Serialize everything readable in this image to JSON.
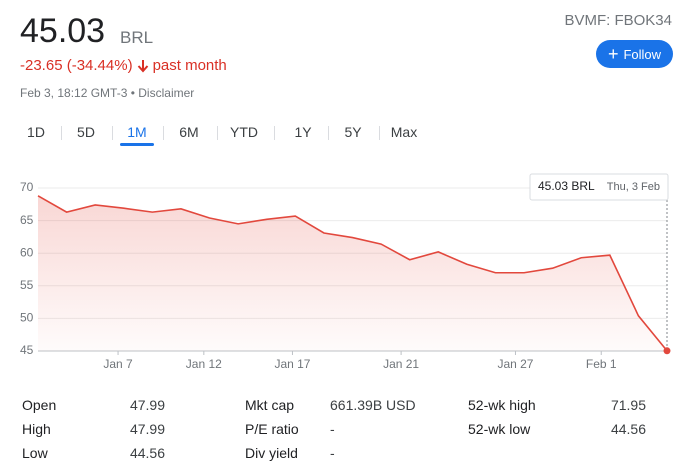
{
  "header": {
    "price": "45.03",
    "currency": "BRL",
    "change": "-23.65 (-34.44%)",
    "period": "past month",
    "timestamp": "Feb 3, 18:12 GMT-3",
    "disclaimer": "Disclaimer",
    "ticker": "BVMF: FBOK34",
    "follow": "Follow"
  },
  "tabs": [
    "1D",
    "5D",
    "1M",
    "6M",
    "YTD",
    "1Y",
    "5Y",
    "Max"
  ],
  "chart_data": {
    "type": "line",
    "color": "#e2483d",
    "x": [
      0,
      1,
      2,
      3,
      4,
      5,
      6,
      7,
      8,
      9,
      10,
      11,
      12,
      13,
      14,
      15,
      16,
      17,
      18,
      19,
      20,
      21,
      22
    ],
    "values": [
      68.8,
      66.3,
      67.4,
      66.9,
      66.3,
      66.8,
      65.4,
      64.5,
      65.2,
      65.7,
      63.1,
      62.4,
      61.4,
      59.0,
      60.2,
      58.3,
      57.0,
      57.0,
      57.7,
      59.3,
      59.7,
      50.4,
      45.03
    ],
    "xlim": [
      0,
      22
    ],
    "ylim": [
      45,
      70
    ],
    "yticks": [
      45,
      50,
      55,
      60,
      65,
      70
    ],
    "xticks": [
      {
        "value": 2.8,
        "label": "Jan 7"
      },
      {
        "value": 5.8,
        "label": "Jan 12"
      },
      {
        "value": 8.9,
        "label": "Jan 17"
      },
      {
        "value": 12.7,
        "label": "Jan 21"
      },
      {
        "value": 16.7,
        "label": "Jan 27"
      },
      {
        "value": 19.7,
        "label": "Feb 1"
      }
    ],
    "grid": true,
    "tooltip": {
      "value": "45.03 BRL",
      "date": "Thu, 3 Feb"
    }
  },
  "stats": [
    [
      [
        "Open",
        "47.99"
      ],
      [
        "High",
        "47.99"
      ],
      [
        "Low",
        "44.56"
      ]
    ],
    [
      [
        "Mkt cap",
        "661.39B USD"
      ],
      [
        "P/E ratio",
        "-"
      ],
      [
        "Div yield",
        "-"
      ]
    ],
    [
      [
        "52-wk high",
        "71.95"
      ],
      [
        "52-wk low",
        "44.56"
      ]
    ]
  ]
}
